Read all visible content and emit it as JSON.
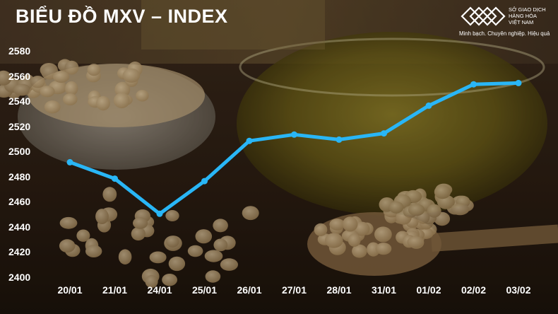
{
  "header": {
    "title": "BIỂU ĐỒ MXV – INDEX"
  },
  "logo": {
    "lines": [
      "SỞ GIAO DỊCH",
      "HÀNG HÓA",
      "VIỆT NAM"
    ],
    "tagline": "Minh bạch. Chuyên nghiệp. Hiệu quả",
    "icon": "mxv-diamond-logo-icon"
  },
  "colors": {
    "line": "#29b6f6",
    "text": "#ffffff"
  },
  "chart_data": {
    "type": "line",
    "title": "BIỂU ĐỒ MXV – INDEX",
    "categories": [
      "20/01",
      "21/01",
      "24/01",
      "25/01",
      "26/01",
      "27/01",
      "28/01",
      "31/01",
      "01/02",
      "02/02",
      "03/02"
    ],
    "series": [
      {
        "values": [
          2492,
          2479,
          2451,
          2477,
          2509,
          2514,
          2510,
          2515,
          2537,
          2554,
          2555
        ]
      }
    ],
    "yticks": [
      2400,
      2420,
      2440,
      2460,
      2480,
      2500,
      2520,
      2540,
      2560,
      2580
    ],
    "ylim": [
      2400,
      2580
    ],
    "xlabel": "",
    "ylabel": "",
    "grid": false,
    "legend": "none"
  }
}
